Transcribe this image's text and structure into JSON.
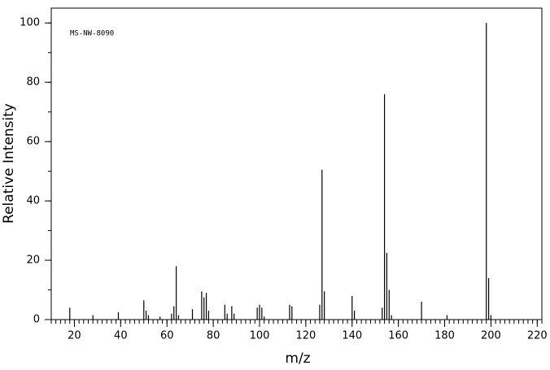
{
  "chart_data": {
    "type": "stick",
    "annotation": "MS-NW-8090",
    "x_label": "m/z",
    "y_label": "Relative Intensity",
    "x": [
      18,
      28,
      39,
      50,
      51,
      52,
      57,
      62,
      63,
      64,
      65,
      71,
      75,
      76,
      77,
      78,
      85,
      86,
      88,
      89,
      99,
      100,
      101,
      102,
      113,
      114,
      126,
      127,
      128,
      140,
      141,
      153,
      154,
      155,
      156,
      157,
      170,
      181,
      198,
      199,
      200
    ],
    "values": [
      4,
      1.5,
      2.5,
      6.5,
      3,
      1.5,
      1,
      2,
      4.5,
      18,
      1.5,
      3.5,
      9.5,
      7.5,
      9,
      3,
      5,
      2,
      4.5,
      2,
      4,
      5,
      4,
      1,
      5,
      4.5,
      5,
      50.5,
      9.5,
      8,
      3,
      4,
      76,
      22.5,
      10,
      1.5,
      6,
      1.5,
      100,
      14,
      1.5
    ],
    "color": "#000000",
    "xlim": [
      10,
      222
    ],
    "ylim": [
      0,
      105
    ],
    "xticks": [
      20,
      40,
      60,
      80,
      100,
      120,
      140,
      160,
      180,
      200,
      220
    ],
    "yticks": [
      0,
      20,
      40,
      60,
      80,
      100
    ]
  }
}
